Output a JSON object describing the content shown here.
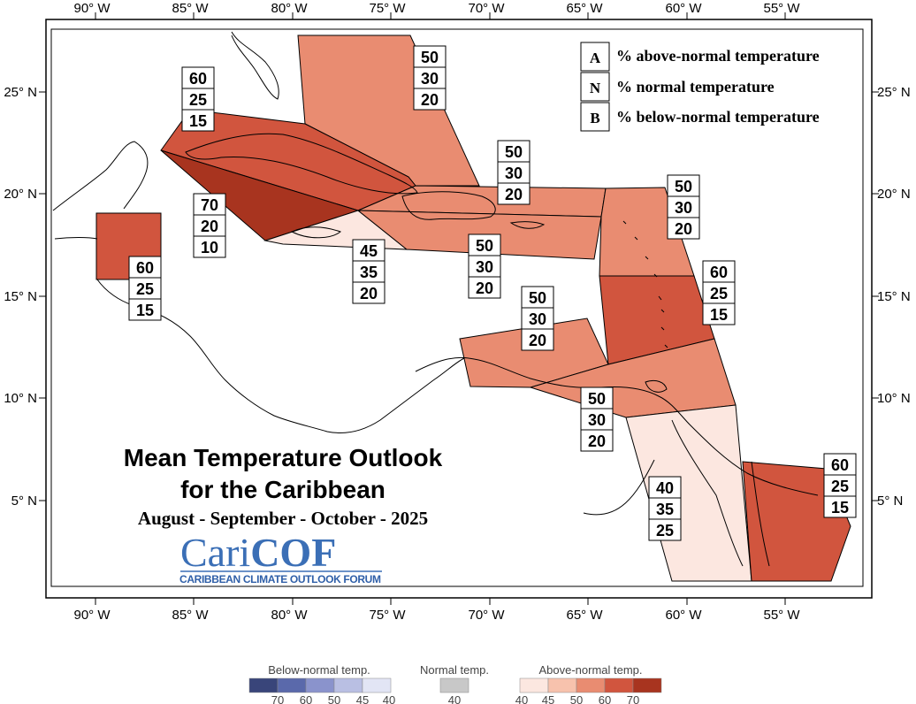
{
  "axes": {
    "x_ticks": [
      "90° W",
      "85° W",
      "80° W",
      "75° W",
      "70° W",
      "65° W",
      "60° W",
      "55° W"
    ],
    "y_ticks": [
      "25° N",
      "20° N",
      "15° N",
      "10° N",
      "5° N"
    ]
  },
  "legend": [
    {
      "letter": "A",
      "text": "% above-normal temperature"
    },
    {
      "letter": "N",
      "text": "% normal temperature"
    },
    {
      "letter": "B",
      "text": "% below-normal temperature"
    }
  ],
  "title": {
    "line1": "Mean Temperature Outlook",
    "line2": "for the Caribbean",
    "period": "August - September - October - 2025"
  },
  "logo": {
    "name": "CariCOF",
    "name_a": "Cari",
    "name_b": "COF",
    "subtitle": "CARIBBEAN CLIMATE OUTLOOK FORUM"
  },
  "regions": [
    {
      "id": "bahamas",
      "A": "50",
      "N": "30",
      "B": "20"
    },
    {
      "id": "cuba",
      "A": "60",
      "N": "25",
      "B": "15"
    },
    {
      "id": "cayman",
      "A": "70",
      "N": "20",
      "B": "10"
    },
    {
      "id": "belize",
      "A": "60",
      "N": "25",
      "B": "15"
    },
    {
      "id": "jamaica",
      "A": "45",
      "N": "35",
      "B": "20"
    },
    {
      "id": "hispaniola-north",
      "A": "50",
      "N": "30",
      "B": "20"
    },
    {
      "id": "hispaniola-south",
      "A": "50",
      "N": "30",
      "B": "20"
    },
    {
      "id": "leeward",
      "A": "50",
      "N": "30",
      "B": "20"
    },
    {
      "id": "windward",
      "A": "60",
      "N": "25",
      "B": "15"
    },
    {
      "id": "abc-islands",
      "A": "50",
      "N": "30",
      "B": "20"
    },
    {
      "id": "trinidad",
      "A": "50",
      "N": "30",
      "B": "20"
    },
    {
      "id": "guyana",
      "A": "40",
      "N": "35",
      "B": "25"
    },
    {
      "id": "suriname",
      "A": "60",
      "N": "25",
      "B": "15"
    }
  ],
  "colorbar": {
    "below": {
      "title": "Below-normal temp.",
      "ticks": [
        "70",
        "60",
        "50",
        "45",
        "40"
      ],
      "colors": [
        "#39457a",
        "#5a69ab",
        "#8a93cc",
        "#b9bfe3",
        "#e2e5f5"
      ]
    },
    "normal": {
      "title": "Normal temp.",
      "ticks": [
        "40"
      ],
      "color": "#c8c8c8"
    },
    "above": {
      "title": "Above-normal temp.",
      "ticks": [
        "40",
        "45",
        "50",
        "60",
        "70"
      ],
      "colors": [
        "#fce7e0",
        "#f7c2ad",
        "#e98c71",
        "#d1553e",
        "#a8341f"
      ]
    }
  }
}
